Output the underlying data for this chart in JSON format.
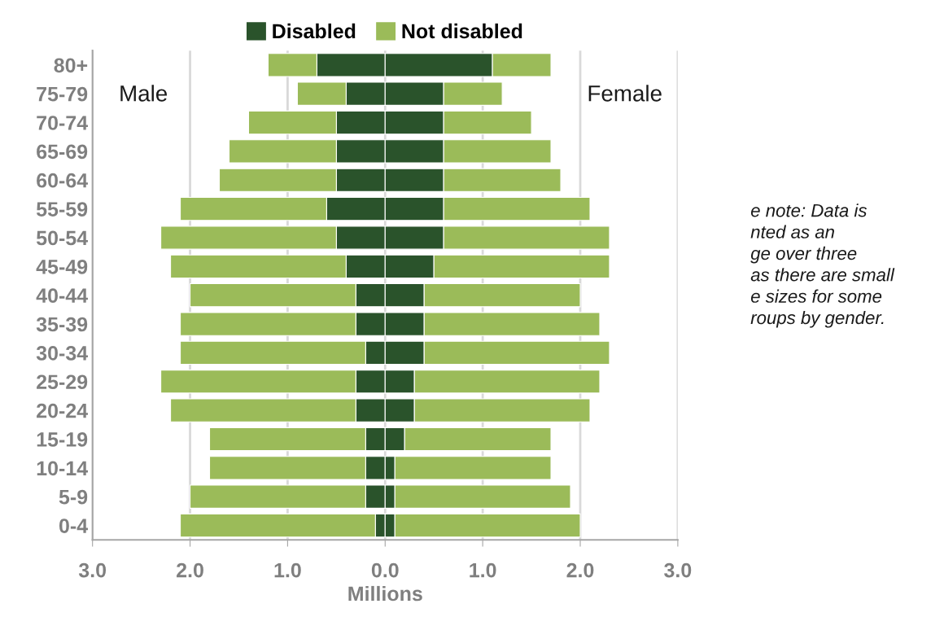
{
  "chart_data": {
    "type": "bar",
    "orientation": "horizontal",
    "stacked": true,
    "xlabel": "Millions",
    "categories": [
      "80+",
      "75-79",
      "70-74",
      "65-69",
      "60-64",
      "55-59",
      "50-54",
      "45-49",
      "40-44",
      "35-39",
      "30-34",
      "25-29",
      "20-24",
      "15-19",
      "10-14",
      "5-9",
      "0-4"
    ],
    "series": [
      {
        "name": "Disabled",
        "color": "#2a532b",
        "values": [
          -0.7,
          -0.4,
          -0.5,
          -0.5,
          -0.5,
          -0.6,
          -0.5,
          -0.4,
          -0.3,
          -0.3,
          -0.2,
          -0.3,
          -0.3,
          -0.2,
          -0.2,
          -0.2,
          -0.1
        ]
      },
      {
        "name": "Not disabled",
        "color": "#9bbb59",
        "values": [
          -0.5,
          -0.5,
          -0.9,
          -1.1,
          -1.2,
          -1.5,
          -1.8,
          -1.8,
          -1.7,
          -1.8,
          -1.9,
          -2.0,
          -1.9,
          -1.6,
          -1.6,
          -1.8,
          -2.0
        ]
      },
      {
        "color": "#2a532b",
        "values": [
          1.1,
          0.6,
          0.6,
          0.6,
          0.6,
          0.6,
          0.6,
          0.5,
          0.4,
          0.4,
          0.4,
          0.3,
          0.3,
          0.2,
          0.1,
          0.1,
          0.1
        ]
      },
      {
        "color": "#9bbb59",
        "values": [
          0.6,
          0.6,
          0.9,
          1.1,
          1.2,
          1.5,
          1.7,
          1.8,
          1.6,
          1.8,
          1.9,
          1.9,
          1.8,
          1.5,
          1.6,
          1.8,
          1.9
        ]
      }
    ],
    "xlim": [
      -3,
      3
    ],
    "xticks": [
      {
        "value": -3,
        "label": "3.0"
      },
      {
        "value": -2,
        "label": "2.0"
      },
      {
        "value": -1,
        "label": "1.0"
      },
      {
        "value": 0,
        "label": "0.0"
      },
      {
        "value": 1,
        "label": "1.0"
      },
      {
        "value": 2,
        "label": "2.0"
      },
      {
        "value": 3,
        "label": "3.0"
      }
    ],
    "grid": "x",
    "legend": "top",
    "annotations": [
      "Male",
      "Female",
      "e note: Data is\nnted as an\nge over three\nas there are small\ne sizes for some\nroups by gender."
    ]
  }
}
